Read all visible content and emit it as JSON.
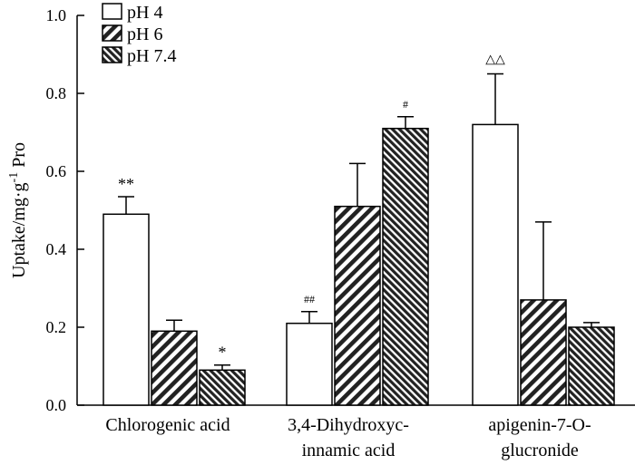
{
  "chart_data": {
    "type": "bar",
    "title": "",
    "xlabel": "",
    "ylabel": "Uptake/mg·g",
    "ylabel_sup": "-1",
    "ylabel_suffix": " Pro",
    "ylim": [
      0,
      1.0
    ],
    "yticks": [
      "0.0",
      "0.2",
      "0.4",
      "0.6",
      "0.8",
      "1.0"
    ],
    "grid": false,
    "legend_position": "top-left",
    "categories": [
      [
        "Chlorogenic acid"
      ],
      [
        "3,4-Dihydroxyc-",
        "innamic acid"
      ],
      [
        "apigenin-7-O-",
        "glucronide"
      ]
    ],
    "series": [
      {
        "name": "pH 4",
        "pattern": "white",
        "values": [
          0.49,
          0.21,
          0.72
        ],
        "errors": [
          0.045,
          0.03,
          0.13
        ]
      },
      {
        "name": "pH 6",
        "pattern": "hatch-wide",
        "values": [
          0.19,
          0.51,
          0.27
        ],
        "errors": [
          0.028,
          0.11,
          0.2
        ]
      },
      {
        "name": "pH 7.4",
        "pattern": "hatch-dense",
        "values": [
          0.09,
          0.71,
          0.2
        ],
        "errors": [
          0.013,
          0.03,
          0.012
        ]
      }
    ],
    "annotations": [
      {
        "category": 0,
        "series": 0,
        "text": "**"
      },
      {
        "category": 0,
        "series": 2,
        "text": "*"
      },
      {
        "category": 1,
        "series": 0,
        "text": "##"
      },
      {
        "category": 1,
        "series": 2,
        "text": "#"
      },
      {
        "category": 2,
        "series": 0,
        "text": "△△"
      }
    ]
  }
}
